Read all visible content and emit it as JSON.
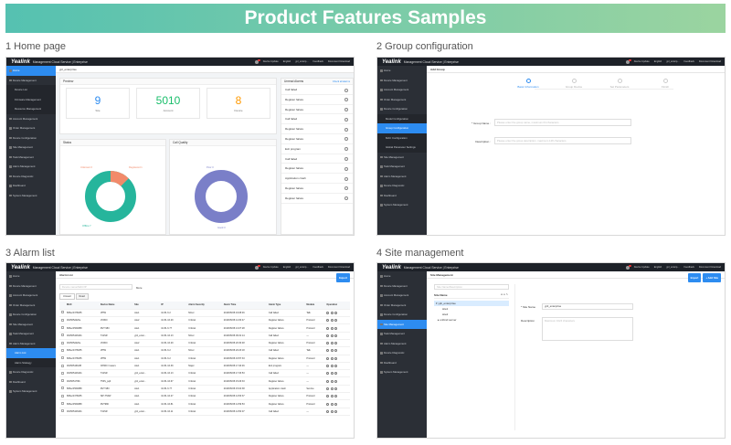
{
  "banner_title": "Product Features Samples",
  "captions": [
    "1 Home page",
    "2 Group configuration",
    "3 Alarm list",
    "4 Site management"
  ],
  "app": {
    "logo": "Yealink",
    "name": "Management Cloud Service | Enterprise",
    "device_update": "Device Update",
    "language": "English",
    "user": "ypl_enterp...",
    "feedback": "Feedback",
    "download": "Document Download"
  },
  "home": {
    "crumb": "ypl_enterprise",
    "sidebar": [
      "Home",
      "Device Management",
      "Device List",
      "Firmware Management",
      "Resource Management",
      "Account Management",
      "Order Management",
      "Device Configuration",
      "Site Management",
      "Task Management",
      "Alarm Management",
      "Device Diagnostic",
      "Dashboard",
      "System Management"
    ],
    "preview_title": "Preview",
    "stats": [
      {
        "value": "9",
        "label": "Site",
        "color": "#2d8cf0"
      },
      {
        "value": "5010",
        "label": "Account",
        "color": "#19be6b"
      },
      {
        "value": "8",
        "label": "Device",
        "color": "#ff9900"
      }
    ],
    "status_title": "Status",
    "status_labels": [
      "Unknown 0",
      "Registered 1",
      "Offline 7"
    ],
    "donut_values": {
      "unknown": 0,
      "registered": 1,
      "offline": 7
    },
    "callq_title": "Call Quality",
    "callq_labels": [
      "Poor 0",
      "Good 3"
    ],
    "alarms_title": "Unread Alarms",
    "alarms_link": "Check all alarms",
    "alarms": [
      "Call failed",
      "Register failure",
      "Register failure",
      "Call failed",
      "Register failure",
      "Register failure",
      "Exit program",
      "Call failed",
      "Register failure",
      "Application crash",
      "Register failure",
      "Register failure"
    ]
  },
  "group": {
    "sidebar": [
      "Home",
      "Device Management",
      "Account Management",
      "Order Management",
      "Device Configuration",
      "Model Configuration",
      "Group Configuration",
      "MAC Configuration",
      "Global Parameter Settings",
      "Site Management",
      "Task Management",
      "Alarm Management",
      "Device Diagnostic",
      "Dashboard",
      "System Management"
    ],
    "title": "Add Group",
    "steps": [
      "Basic Information",
      "Group Device",
      "Set Parameters",
      "Finish"
    ],
    "name_label": "* Group Name :",
    "name_placeholder": "Please enter the group name, maximum 64 characters",
    "desc_label": "Description :",
    "desc_placeholder": "Please enter the group description, maximum 128 characters"
  },
  "alarm": {
    "sidebar": [
      "Home",
      "Device Management",
      "Account Management",
      "Order Management",
      "Device Configuration",
      "Site Management",
      "Task Management",
      "Alarm Management",
      "Alarm List",
      "Alarm Strategy",
      "Device Diagnostic",
      "Dashboard",
      "System Management"
    ],
    "title": "Alarm List",
    "export": "Export",
    "search_placeholder": "Device name/MAC/IP",
    "more": "More",
    "tabs": [
      "Unread",
      "Read"
    ],
    "columns": [
      "MAC",
      "Device Name",
      "Site",
      "IP",
      "Alarm Severity",
      "Alarm Time",
      "Alarm Type",
      "Module",
      "Operation"
    ],
    "rows": [
      [
        "805ec0376b55",
        "VP59",
        "site1",
        "10.81.6.2",
        "Minor",
        "2019/05/28 19:08:46",
        "Call failed",
        "Talk"
      ],
      [
        "001565d220e",
        "VC800",
        "site2",
        "10.81.16.29",
        "Critical",
        "2019/05/28 14:30:47",
        "Register failure",
        "Protocol"
      ],
      [
        "805ec0564888",
        "RVT 980",
        "site1",
        "10.81.6.77",
        "Critical",
        "2019/05/28 13:27:28",
        "Register failure",
        "Protocol"
      ],
      [
        "0015651b6401",
        "T41SR",
        "ypli_enter...",
        "10.81.16.13",
        "Minor",
        "2019/05/28 09:31:14",
        "Call failed",
        "—"
      ],
      [
        "001565d220e",
        "VC800",
        "site2",
        "10.81.16.29",
        "Critical",
        "2019/05/28 20:30:48",
        "Register failure",
        "Protocol"
      ],
      [
        "805ec0376b55",
        "VP59",
        "site1",
        "10.81.6.2",
        "Minor",
        "2019/05/28 20:23:18",
        "Call failed",
        "Talk"
      ],
      [
        "805ec0376b55",
        "VP59",
        "site1",
        "10.81.6.2",
        "Critical",
        "2019/05/28 19:57:33",
        "Register failure",
        "Protocol"
      ],
      [
        "00156516b2f8",
        "CP960 / lowers",
        "site1",
        "10.81.16.39",
        "Major",
        "2019/05/28 17:40:46",
        "Exit program",
        "—"
      ],
      [
        "0015651b6401",
        "T41SR",
        "ypli_enter...",
        "10.81.16.13",
        "Critical",
        "2019/05/28 17:33:53",
        "Call failed",
        "—"
      ],
      [
        "00156517f9b",
        "T53S_pqlt",
        "ypli_enter...",
        "10.81.16.67",
        "Critical",
        "2019/05/28 15:26:33",
        "Register failure",
        "—"
      ],
      [
        "805ec0564888",
        "RVT 980",
        "site1",
        "10.81.6.77",
        "Critical",
        "2019/05/28 15:04:38",
        "Application crash",
        "Service"
      ],
      [
        "805ec0376b55",
        "SIP-T53W",
        "site1",
        "10.81.16.27",
        "Critical",
        "2019/05/28 14:53:37",
        "Register failure",
        "Protocol"
      ],
      [
        "805ec0564888",
        "RVT980",
        "site1",
        "10.81.16.81",
        "Critical",
        "2019/05/28 14:59:53",
        "Register failure",
        "Protocol"
      ],
      [
        "0015651b6401",
        "T41SR",
        "ypli_enter...",
        "10.81.16.11",
        "Critical",
        "2019/05/28 14:50:07",
        "Call failed",
        "—"
      ]
    ]
  },
  "site": {
    "sidebar": [
      "Home",
      "Device Management",
      "Account Management",
      "Order Management",
      "Device Configuration",
      "Site Management",
      "Task Management",
      "Alarm Management",
      "Device Diagnostic",
      "Dashboard",
      "System Management"
    ],
    "title": "Site Management",
    "import": "Import",
    "add": "+ Add Site",
    "search_placeholder": "Site Name/Description",
    "tree_header": "Site Name",
    "tree": [
      "ypli_enterprise",
      "site1",
      "site2",
      "unbind server"
    ],
    "name_label": "* Site Name",
    "name_value": "ypli_enterprise",
    "desc_label": "Description",
    "desc_placeholder": "Maximum 1024 characters"
  }
}
